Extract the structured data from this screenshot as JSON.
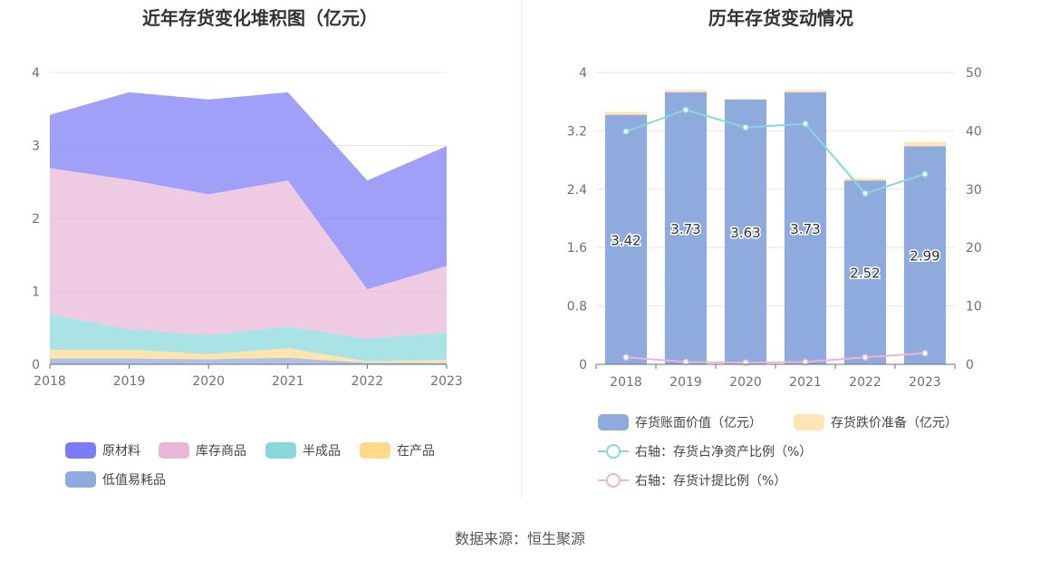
{
  "source_text": "数据来源：恒生聚源",
  "chart_data": [
    {
      "type": "area",
      "stacked": true,
      "title": "近年存货变化堆积图（亿元）",
      "categories": [
        "2018",
        "2019",
        "2020",
        "2021",
        "2022",
        "2023"
      ],
      "ylim": [
        0,
        4
      ],
      "yticks": [
        "0",
        "1",
        "2",
        "3",
        "4"
      ],
      "grid": true,
      "legend_position": "bottom",
      "series": [
        {
          "name": "低值易耗品",
          "color": "#8faadc",
          "values": [
            0.08,
            0.08,
            0.07,
            0.09,
            0.02,
            0.02
          ]
        },
        {
          "name": "在产品",
          "color": "#ffd98a",
          "values": [
            0.12,
            0.12,
            0.07,
            0.13,
            0.02,
            0.04
          ]
        },
        {
          "name": "半成品",
          "color": "#88d8db",
          "values": [
            0.49,
            0.28,
            0.26,
            0.3,
            0.31,
            0.38
          ]
        },
        {
          "name": "库存商品",
          "color": "#e9b5d8",
          "values": [
            2.0,
            2.05,
            1.93,
            2.0,
            0.68,
            0.91
          ]
        },
        {
          "name": "原材料",
          "color": "#7b7cf7",
          "values": [
            0.73,
            1.2,
            1.3,
            1.21,
            1.49,
            1.64
          ]
        }
      ]
    },
    {
      "type": "bar",
      "title": "历年存货变动情况",
      "categories": [
        "2018",
        "2019",
        "2020",
        "2021",
        "2022",
        "2023"
      ],
      "ylim": [
        0,
        4
      ],
      "yticks": [
        "0",
        "0.8",
        "1.6",
        "2.4",
        "3.2",
        "4"
      ],
      "y2lim": [
        0,
        50
      ],
      "y2ticks": [
        "0",
        "10",
        "20",
        "30",
        "40",
        "50"
      ],
      "grid": true,
      "legend_position": "bottom",
      "series": [
        {
          "name": "存货账面价值（亿元）",
          "kind": "bar",
          "color": "#8faadc",
          "values": [
            3.42,
            3.73,
            3.63,
            3.73,
            2.52,
            2.99
          ],
          "labels": [
            "3.42",
            "3.73",
            "3.63",
            "3.73",
            "2.52",
            "2.99"
          ]
        },
        {
          "name": "存货跌价准备（亿元）",
          "kind": "bar",
          "color": "#ffe4b5",
          "values": [
            0.04,
            0.03,
            0.01,
            0.03,
            0.03,
            0.06
          ]
        },
        {
          "name": "右轴：存货占净资产比例（%）",
          "kind": "line",
          "axis": "right",
          "color": "#88d8db",
          "values": [
            39.9,
            43.6,
            40.6,
            41.2,
            29.3,
            32.6
          ]
        },
        {
          "name": "右轴：存货计提比例（%）",
          "kind": "line",
          "axis": "right",
          "color": "#e9b5d8",
          "values": [
            1.2,
            0.4,
            0.3,
            0.4,
            1.2,
            1.9
          ]
        }
      ]
    }
  ]
}
